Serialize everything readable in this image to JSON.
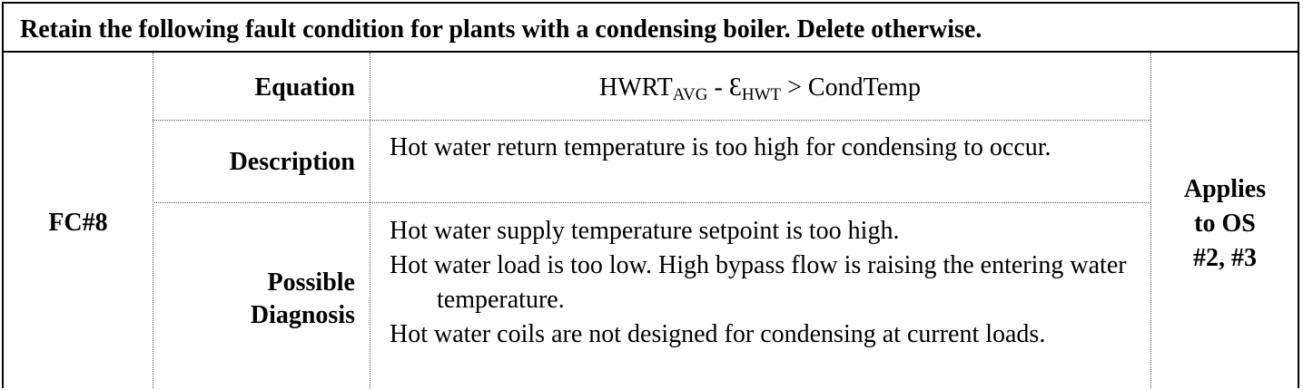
{
  "header": {
    "title": "Retain the following fault condition for plants with a condensing boiler. Delete otherwise."
  },
  "fault": {
    "id": "FC#8",
    "applies": [
      "Applies",
      "to OS",
      "#2, #3"
    ]
  },
  "rows": {
    "equation": {
      "label": "Equation",
      "lhs": "HWRT",
      "lhs_sub": "AVG",
      "op1": " - ",
      "eps": "Ɛ",
      "eps_sub": "HWT",
      "rhs": " > CondTemp"
    },
    "description": {
      "label": "Description",
      "text": "Hot water return temperature is too high for condensing to occur."
    },
    "diagnosis": {
      "label_line1": "Possible",
      "label_line2": "Diagnosis",
      "items": [
        "Hot water supply temperature setpoint is too high.",
        "Hot water load is too low. High bypass flow is raising the entering water temperature.",
        "Hot water coils are not designed for condensing at current loads."
      ]
    }
  }
}
